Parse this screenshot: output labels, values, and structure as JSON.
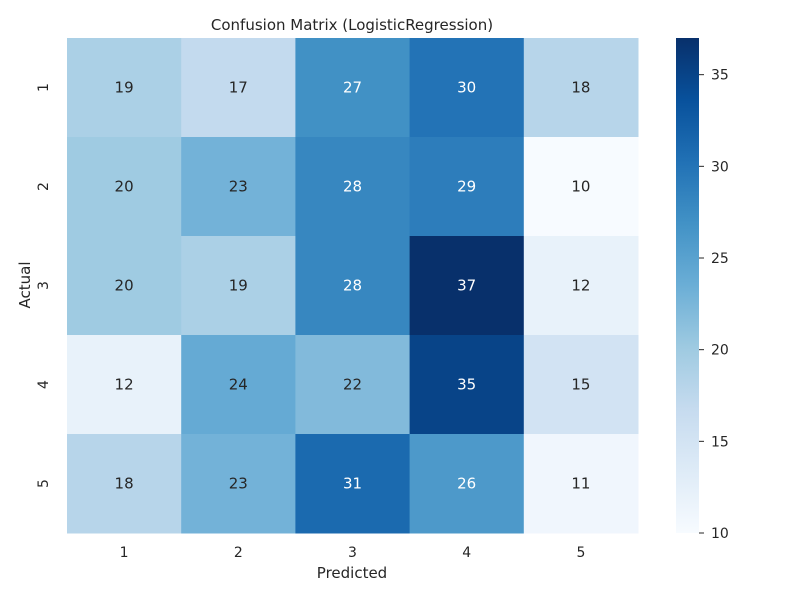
{
  "chart_data": {
    "type": "heatmap",
    "title": "Confusion Matrix (LogisticRegression)",
    "xlabel": "Predicted",
    "ylabel": "Actual",
    "x_categories": [
      "1",
      "2",
      "3",
      "4",
      "5"
    ],
    "y_categories": [
      "1",
      "2",
      "3",
      "4",
      "5"
    ],
    "values": [
      [
        19,
        17,
        27,
        30,
        18
      ],
      [
        20,
        23,
        28,
        29,
        10
      ],
      [
        20,
        19,
        28,
        37,
        12
      ],
      [
        12,
        24,
        22,
        35,
        15
      ],
      [
        18,
        23,
        31,
        26,
        11
      ]
    ],
    "colorscale": "Blues",
    "color_min": 10,
    "color_max": 37,
    "colorbar_ticks": [
      10,
      15,
      20,
      25,
      30,
      35
    ],
    "annotations": true,
    "grid": false
  }
}
